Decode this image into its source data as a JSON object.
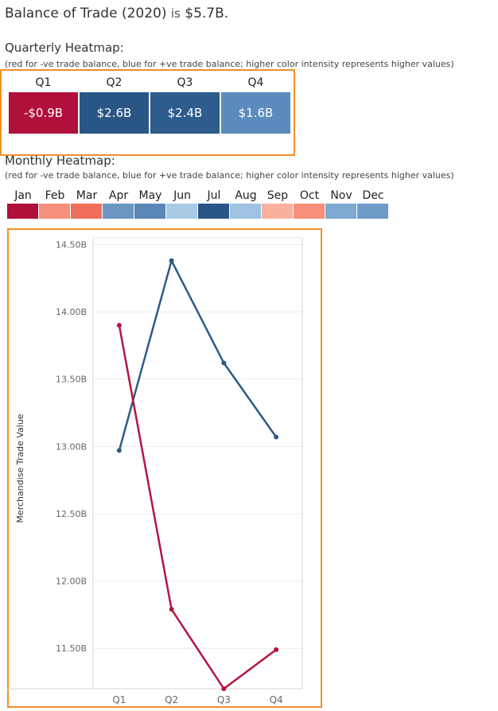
{
  "headline": {
    "prefix": "Balance of Trade (2020)",
    "is": "is",
    "value": "$5.7B."
  },
  "quarterly": {
    "title": "Quarterly Heatmap:",
    "note": "(red for -ve trade balance, blue for +ve trade balance; higher color intensity represents higher values)",
    "quarters": [
      "Q1",
      "Q2",
      "Q3",
      "Q4"
    ],
    "values": [
      "-$0.9B",
      "$2.6B",
      "$2.4B",
      "$1.6B"
    ],
    "colors": [
      "#b0103a",
      "#2a5686",
      "#2e5c8c",
      "#5b8cbd"
    ]
  },
  "monthly": {
    "title": "Monthly Heatmap:",
    "note": "(red for -ve trade balance, blue for +ve trade balance; higher color intensity represents higher values)",
    "months": [
      "Jan",
      "Feb",
      "Mar",
      "Apr",
      "May",
      "Jun",
      "Jul",
      "Aug",
      "Sep",
      "Oct",
      "Nov",
      "Dec"
    ],
    "colors": [
      "#b0103a",
      "#f6917c",
      "#f06e5b",
      "#6b96c1",
      "#5a87b6",
      "#a9cbe6",
      "#2a5686",
      "#9dc2e2",
      "#fbb19d",
      "#f88f79",
      "#7ea9d2",
      "#6f9bc8"
    ]
  },
  "chart_data": {
    "type": "line",
    "ylabel": "Merchandise Trade Value",
    "x": [
      "Q1",
      "Q2",
      "Q3",
      "Q4"
    ],
    "yticks": [
      "11.50B",
      "12.00B",
      "12.50B",
      "13.00B",
      "13.50B",
      "14.00B",
      "14.50B"
    ],
    "ylim": [
      11.2,
      14.55
    ],
    "series": [
      {
        "color": "#2e5a87",
        "values": [
          12.97,
          14.38,
          13.62,
          13.07
        ]
      },
      {
        "color": "#b5163f",
        "values": [
          13.9,
          11.79,
          11.2,
          11.49
        ]
      }
    ]
  }
}
